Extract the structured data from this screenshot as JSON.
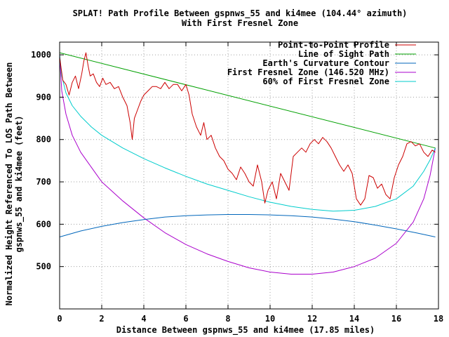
{
  "chart_data": {
    "type": "line",
    "title": "SPLAT! Path Profile Between gspnws_55 and ki4mee (104.44° azimuth)",
    "subtitle": "With First Fresnel Zone",
    "xlabel": "Distance Between gspnws_55 and ki4mee (17.85 miles)",
    "ylabel_line1": "Normalized Height Referenced To LOS Path Between",
    "ylabel_line2": "gspnws_55 and ki4mee (feet)",
    "xlim": [
      0,
      18
    ],
    "ylim": [
      400,
      1030
    ],
    "x_ticks": [
      0,
      2,
      4,
      6,
      8,
      10,
      12,
      14,
      16,
      18
    ],
    "y_ticks": [
      500,
      600,
      700,
      800,
      900,
      1000
    ],
    "grid": true,
    "legend_position": "top-right",
    "series": [
      {
        "name": "Point-to-Point Profile",
        "color": "#cc0000",
        "x": [
          0,
          0.15,
          0.3,
          0.45,
          0.6,
          0.75,
          0.9,
          1.05,
          1.15,
          1.25,
          1.35,
          1.45,
          1.6,
          1.75,
          1.9,
          2.05,
          2.2,
          2.4,
          2.6,
          2.8,
          3.0,
          3.2,
          3.35,
          3.45,
          3.55,
          3.7,
          3.85,
          4.0,
          4.2,
          4.4,
          4.6,
          4.8,
          5.0,
          5.2,
          5.4,
          5.6,
          5.8,
          6.0,
          6.15,
          6.3,
          6.5,
          6.7,
          6.85,
          7.0,
          7.2,
          7.4,
          7.6,
          7.8,
          8.0,
          8.2,
          8.4,
          8.6,
          8.8,
          9.0,
          9.2,
          9.4,
          9.6,
          9.75,
          9.9,
          10.1,
          10.3,
          10.5,
          10.7,
          10.9,
          11.1,
          11.3,
          11.5,
          11.7,
          11.9,
          12.1,
          12.3,
          12.5,
          12.7,
          12.9,
          13.1,
          13.3,
          13.5,
          13.7,
          13.9,
          14.1,
          14.3,
          14.5,
          14.7,
          14.9,
          15.1,
          15.3,
          15.5,
          15.7,
          15.9,
          16.1,
          16.3,
          16.5,
          16.7,
          16.9,
          17.1,
          17.3,
          17.5,
          17.7,
          17.85
        ],
        "y": [
          995,
          940,
          930,
          905,
          935,
          950,
          920,
          955,
          985,
          1005,
          975,
          950,
          955,
          935,
          925,
          945,
          930,
          935,
          920,
          925,
          900,
          880,
          840,
          800,
          850,
          870,
          890,
          905,
          915,
          925,
          925,
          920,
          935,
          920,
          930,
          930,
          915,
          930,
          905,
          860,
          830,
          810,
          840,
          800,
          810,
          780,
          760,
          750,
          730,
          720,
          705,
          735,
          720,
          700,
          690,
          740,
          700,
          650,
          680,
          700,
          660,
          720,
          700,
          680,
          760,
          770,
          780,
          770,
          790,
          800,
          790,
          805,
          795,
          780,
          760,
          740,
          725,
          740,
          720,
          660,
          645,
          660,
          715,
          710,
          685,
          695,
          670,
          660,
          710,
          740,
          760,
          790,
          795,
          785,
          790,
          770,
          760,
          775,
          770
        ]
      },
      {
        "name": "Line of Sight Path",
        "color": "#00a000",
        "x": [
          0,
          17.85
        ],
        "y": [
          1005,
          780
        ]
      },
      {
        "name": "Earth's Curvature Contour",
        "color": "#0066bb",
        "x": [
          0,
          1,
          2,
          3,
          4,
          5,
          6,
          7,
          8,
          9,
          10,
          11,
          12,
          13,
          14,
          15,
          16,
          17,
          17.85
        ],
        "y": [
          570,
          584,
          595,
          604,
          611,
          617,
          620,
          622,
          623,
          623,
          622,
          620,
          617,
          612,
          606,
          598,
          589,
          579,
          570
        ]
      },
      {
        "name": "First Fresnel Zone (146.520 MHz)",
        "color": "#aa00cc",
        "x": [
          0,
          0.1,
          0.3,
          0.6,
          1.0,
          1.5,
          2.0,
          3.0,
          4.0,
          5.0,
          6.0,
          7.0,
          8.0,
          9.0,
          10.0,
          11.0,
          12.0,
          13.0,
          14.0,
          15.0,
          16.0,
          16.8,
          17.3,
          17.6,
          17.85
        ],
        "y": [
          1000,
          915,
          860,
          810,
          770,
          735,
          700,
          655,
          615,
          580,
          552,
          530,
          512,
          497,
          487,
          482,
          482,
          487,
          500,
          520,
          555,
          605,
          660,
          715,
          780
        ]
      },
      {
        "name": "60% of First Fresnel Zone",
        "color": "#00cccc",
        "x": [
          0,
          0.1,
          0.3,
          0.6,
          1.0,
          1.5,
          2.0,
          3.0,
          4.0,
          5.0,
          6.0,
          7.0,
          8.0,
          9.0,
          10.0,
          11.0,
          12.0,
          13.0,
          14.0,
          15.0,
          16.0,
          16.8,
          17.3,
          17.6,
          17.85
        ],
        "y": [
          1000,
          950,
          910,
          880,
          855,
          830,
          810,
          780,
          755,
          733,
          713,
          695,
          680,
          665,
          652,
          642,
          635,
          631,
          633,
          642,
          660,
          690,
          725,
          752,
          780
        ]
      }
    ]
  }
}
